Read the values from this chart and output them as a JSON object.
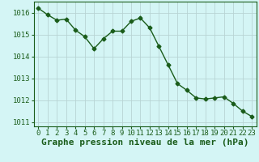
{
  "x": [
    0,
    1,
    2,
    3,
    4,
    5,
    6,
    7,
    8,
    9,
    10,
    11,
    12,
    13,
    14,
    15,
    16,
    17,
    18,
    19,
    20,
    21,
    22,
    23
  ],
  "y": [
    1016.2,
    1015.9,
    1015.65,
    1015.7,
    1015.2,
    1014.9,
    1014.35,
    1014.8,
    1015.15,
    1015.15,
    1015.6,
    1015.75,
    1015.3,
    1014.45,
    1013.6,
    1012.75,
    1012.45,
    1012.1,
    1012.05,
    1012.1,
    1012.15,
    1011.85,
    1011.5,
    1011.25
  ],
  "line_color": "#1a5c1a",
  "marker": "D",
  "marker_size": 2.5,
  "bg_color": "#d4f5f5",
  "grid_color": "#b8d4d4",
  "xlabel": "Graphe pression niveau de la mer (hPa)",
  "xlabel_fontsize": 8,
  "tick_fontsize": 6.5,
  "ylim": [
    1010.8,
    1016.5
  ],
  "yticks": [
    1011,
    1012,
    1013,
    1014,
    1015,
    1016
  ],
  "xlim": [
    -0.5,
    23.5
  ],
  "xticks": [
    0,
    1,
    2,
    3,
    4,
    5,
    6,
    7,
    8,
    9,
    10,
    11,
    12,
    13,
    14,
    15,
    16,
    17,
    18,
    19,
    20,
    21,
    22,
    23
  ]
}
